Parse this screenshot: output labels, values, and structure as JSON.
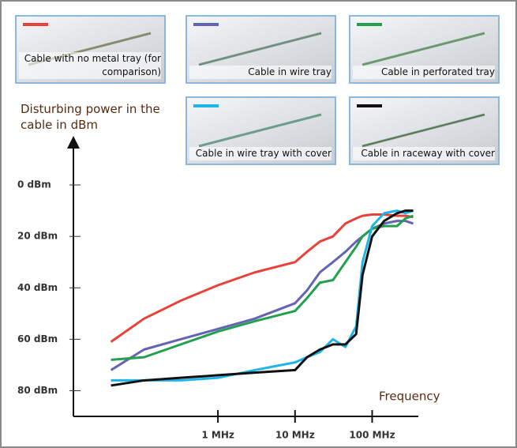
{
  "chart_data": {
    "type": "line",
    "y_label": "Disturbing power in the cable in dBm",
    "x_label": "Frequency",
    "log_x": true,
    "x": [
      0.041,
      0.11,
      0.33,
      1,
      3,
      10,
      14.3,
      21,
      31,
      45,
      62,
      75,
      100,
      143,
      210,
      271,
      341
    ],
    "xlim": [
      0.014,
      370
    ],
    "xticks": [
      {
        "value": 1,
        "label": "1 MHz"
      },
      {
        "value": 10,
        "label": "10 MHz"
      },
      {
        "value": 100,
        "label": "100 MHz"
      }
    ],
    "ylim": [
      90,
      -16
    ],
    "yticks": [
      {
        "value": 0,
        "label": "0 dBm"
      },
      {
        "value": 20,
        "label": "20 dBm"
      },
      {
        "value": 40,
        "label": "40 dBm"
      },
      {
        "value": 60,
        "label": "60 dBm"
      },
      {
        "value": 80,
        "label": "80 dBm"
      }
    ],
    "series": [
      {
        "name": "Cable with no metal tray (for comparison)",
        "color": "#e8433a",
        "values": [
          61,
          52,
          45,
          39,
          34,
          30,
          26,
          22,
          20,
          15,
          13,
          12,
          11.5,
          11.5,
          12,
          12,
          12.5
        ]
      },
      {
        "name": "Cable in wire tray",
        "color": "#6464b4",
        "values": [
          72,
          64,
          60,
          56,
          52,
          46,
          41,
          34,
          30,
          26,
          22,
          20,
          17,
          15,
          14,
          14,
          15
        ]
      },
      {
        "name": "Cable in perforated tray",
        "color": "#22a050",
        "values": [
          68,
          67,
          62,
          57,
          53,
          49,
          44,
          38,
          37,
          30,
          24,
          20,
          17,
          16,
          16,
          13,
          12
        ]
      },
      {
        "name": "Cable in wire tray with cover",
        "color": "#1fb4e8",
        "values": [
          76,
          76,
          76,
          75,
          72,
          69,
          67,
          65,
          60,
          63,
          55,
          30,
          16,
          11,
          10,
          11,
          10
        ]
      },
      {
        "name": "Cable in raceway with cover",
        "color": "#111111",
        "values": [
          78,
          76,
          75,
          74,
          73,
          72,
          67,
          64,
          62,
          62,
          58,
          35,
          20,
          14,
          11,
          10,
          10
        ]
      }
    ]
  }
}
